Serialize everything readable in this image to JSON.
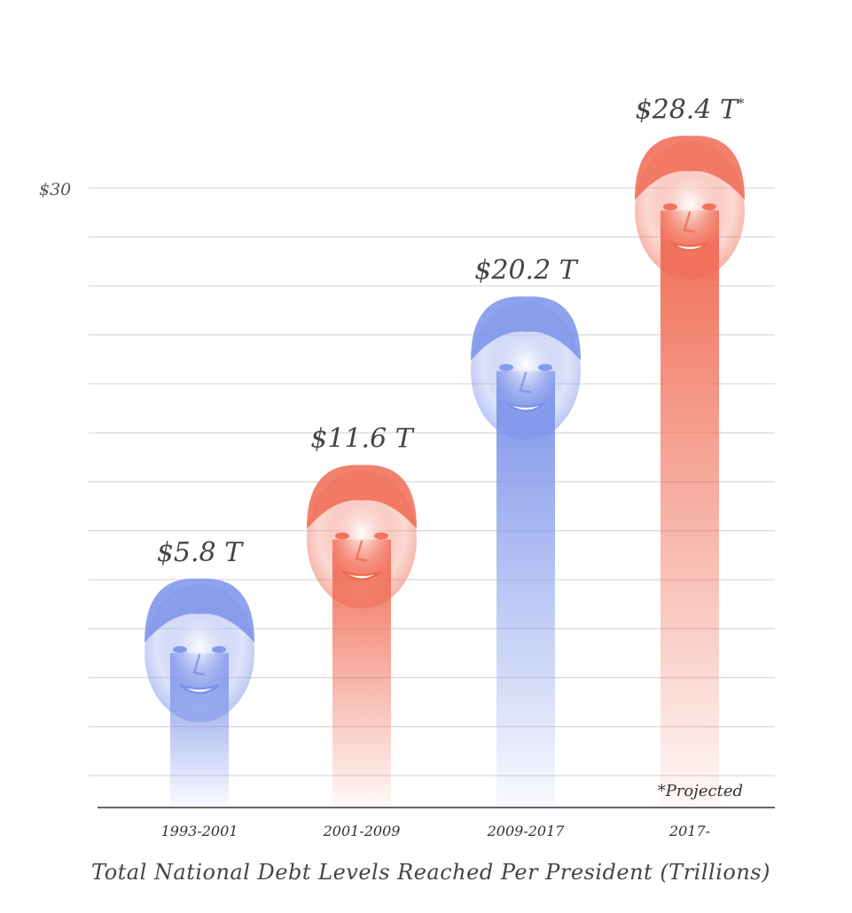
{
  "chart_data": {
    "type": "bar",
    "title": "Total National Debt Levels Reached Per President (Trillions)",
    "xlabel": "",
    "ylabel": "",
    "ylim": [
      0,
      30
    ],
    "yticks": [
      {
        "value": 30,
        "label": "$30"
      }
    ],
    "grid": true,
    "categories": [
      "1993-2001",
      "2001-2009",
      "2009-2017",
      "2017-"
    ],
    "values": [
      5.8,
      11.6,
      20.2,
      28.4
    ],
    "value_labels": [
      "$5.8 T",
      "$11.6 T",
      "$20.2 T",
      "$28.4 T"
    ],
    "value_label_suffix": [
      "",
      "",
      "",
      "*"
    ],
    "bar_colors": [
      "#7b92ea",
      "#f06a52",
      "#7b92ea",
      "#f06a52"
    ],
    "footnote": "*Projected"
  }
}
